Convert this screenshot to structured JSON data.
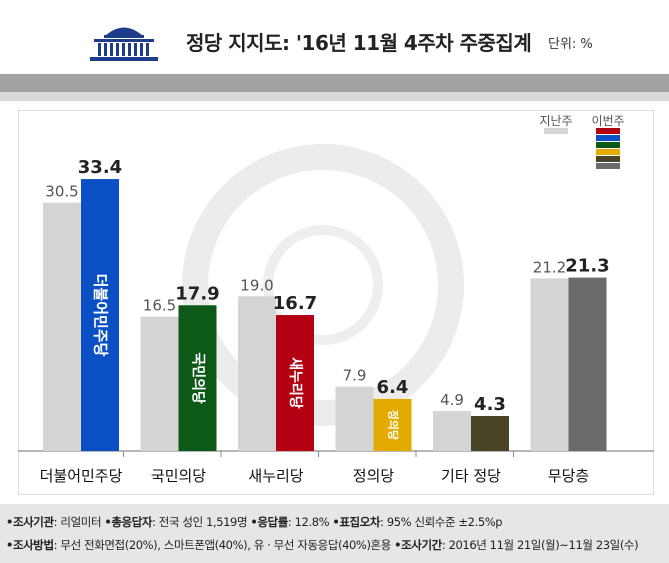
{
  "header": {
    "title": "정당 지지도: '16년 11월 4주차 주중집계",
    "unit": "단위: %"
  },
  "legend": {
    "prev_label": "지난주",
    "curr_label": "이번주"
  },
  "chart_data": {
    "type": "bar",
    "categories": [
      "더불어민주당",
      "국민의당",
      "새누리당",
      "정의당",
      "기타 정당",
      "무당층"
    ],
    "series": [
      {
        "name": "지난주",
        "values": [
          30.5,
          16.5,
          19.0,
          7.9,
          4.9,
          21.2
        ]
      },
      {
        "name": "이번주",
        "values": [
          33.4,
          17.9,
          16.7,
          6.4,
          4.3,
          21.3
        ]
      }
    ],
    "value_labels": {
      "prev": [
        "30.5",
        "16.5",
        "19.0",
        "7.9",
        "4.9",
        "21.2"
      ],
      "curr": [
        "33.4",
        "17.9",
        "16.7",
        "6.4",
        "4.3",
        "21.3"
      ]
    },
    "bar_logos": [
      "더불어민주당",
      "국민의당",
      "새누리당",
      "정의당"
    ],
    "colors": {
      "prev": "#d4d4d4",
      "curr": [
        "#0a4fc4",
        "#0d5a18",
        "#b30012",
        "#e3ab00",
        "#4a4427",
        "#6b6b6b"
      ],
      "logo_text": [
        "#ffffff",
        "#ffffff",
        "#ffffff",
        "#ffffff"
      ]
    },
    "ylim": [
      0,
      40
    ],
    "grid": false,
    "legend_position": "top-right",
    "title": "",
    "xlabel": "",
    "ylabel": ""
  },
  "footer": {
    "line1": [
      {
        "key": "•조사기관",
        "val": ": 리얼미터 "
      },
      {
        "key": "•총응답자",
        "val": ": 전국 성인 1,519명 "
      },
      {
        "key": "•응답률",
        "val": ": 12.8% "
      },
      {
        "key": "•표집오차",
        "val": ": 95% 신뢰수준 ±2.5%p"
      }
    ],
    "line2": [
      {
        "key": "•조사방법",
        "val": ": 무선 전화면접(20%), 스마트폰앱(40%), 유 · 무선 자동응답(40%)혼용 "
      },
      {
        "key": "•조사기간",
        "val": ": 2016년 11월 21일(월)~11월 23일(수)"
      }
    ]
  }
}
